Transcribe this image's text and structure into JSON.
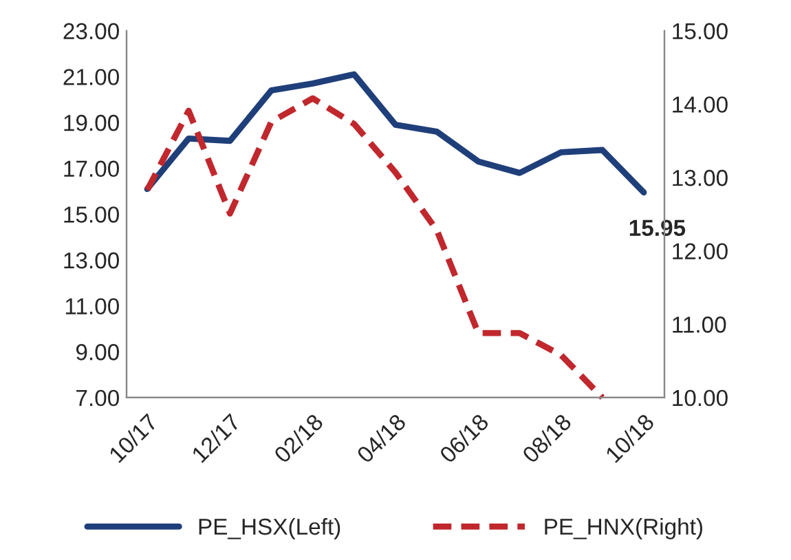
{
  "chart_data": {
    "type": "line",
    "categories": [
      "10/17",
      null,
      "12/17",
      null,
      "02/18",
      null,
      "04/18",
      null,
      "06/18",
      null,
      "08/18",
      null,
      "10/18"
    ],
    "series": [
      {
        "name": "PE_HSX(Left)",
        "color": "#1f3f7a",
        "line_style": "solid",
        "values": [
          16.1,
          18.3,
          18.2,
          20.4,
          20.7,
          21.1,
          18.9,
          18.6,
          17.3,
          16.8,
          17.7,
          17.8,
          15.95
        ],
        "value_labels": [
          null,
          null,
          null,
          null,
          null,
          null,
          null,
          null,
          null,
          null,
          null,
          null,
          "15.95"
        ]
      },
      {
        "name": "PE_HNX(Right)",
        "color": "#c0282d",
        "line_style": "dashed",
        "axis": "y2",
        "values": [
          12.83,
          13.91,
          12.51,
          13.76,
          14.08,
          13.73,
          13.07,
          12.28,
          10.88,
          10.88,
          10.58,
          10.0,
          null
        ]
      }
    ],
    "ylim": [
      7,
      23
    ],
    "yticks": [
      {
        "value": 7,
        "label": "7.00"
      },
      {
        "value": 9,
        "label": "9.00"
      },
      {
        "value": 11,
        "label": "11.00"
      },
      {
        "value": 13,
        "label": "13.00"
      },
      {
        "value": 15,
        "label": "15.00"
      },
      {
        "value": 17,
        "label": "17.00"
      },
      {
        "value": 19,
        "label": "19.00"
      },
      {
        "value": 21,
        "label": "21.00"
      },
      {
        "value": 23,
        "label": "23.00"
      }
    ],
    "y2lim": [
      10,
      15
    ],
    "y2ticks": [
      {
        "value": 10,
        "label": "10.00"
      },
      {
        "value": 11,
        "label": "11.00"
      },
      {
        "value": 12,
        "label": "12.00"
      },
      {
        "value": 13,
        "label": "13.00"
      },
      {
        "value": 14,
        "label": "14.00"
      },
      {
        "value": 15,
        "label": "15.00"
      }
    ],
    "grid": false,
    "legend": "bottom",
    "marker": "none"
  }
}
